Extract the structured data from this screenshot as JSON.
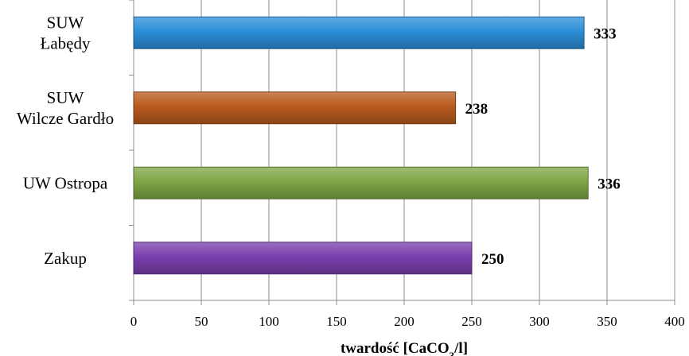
{
  "chart_data": {
    "type": "bar",
    "orientation": "horizontal",
    "categories": [
      [
        "SUW",
        "Łabędy"
      ],
      [
        "SUW",
        "Wilcze Gardło"
      ],
      [
        "UW Ostropa"
      ],
      [
        "Zakup"
      ]
    ],
    "values": [
      333,
      238,
      336,
      250
    ],
    "colors": [
      "#2B8FD8",
      "#B85A1E",
      "#7FA645",
      "#7A3FAE"
    ],
    "xlabel_main": "twardość [CaCO",
    "xlabel_sub": "3",
    "xlabel_tail": "/l]",
    "xlim": [
      0,
      400
    ],
    "xticks": [
      0,
      50,
      100,
      150,
      200,
      250,
      300,
      350,
      400
    ],
    "grid": "vertical"
  }
}
